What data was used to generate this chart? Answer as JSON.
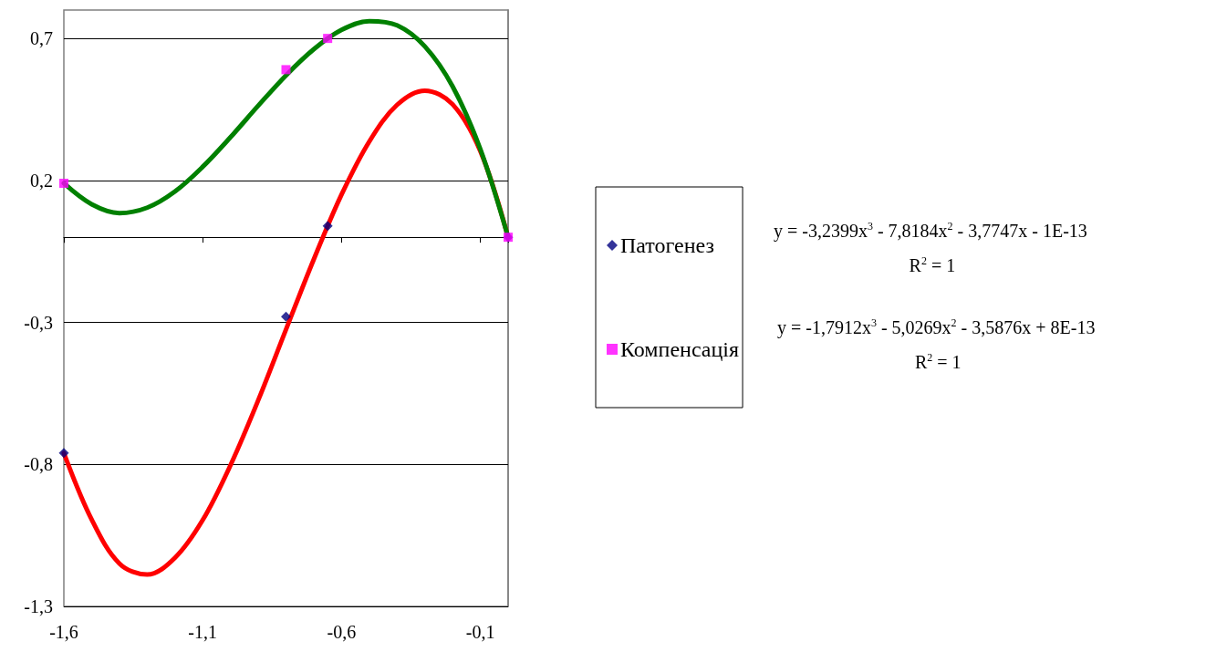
{
  "chart_data": {
    "type": "scatter",
    "xlim": [
      -1.6,
      0
    ],
    "xticks": [
      {
        "value": -1.6,
        "label": "-1,6"
      },
      {
        "value": -1.1,
        "label": "-1,1"
      },
      {
        "value": -0.6,
        "label": "-0,6"
      },
      {
        "value": -0.1,
        "label": "-0,1"
      }
    ],
    "ylim": [
      -1.3,
      0.8
    ],
    "yticks": [
      {
        "value": -1.3,
        "label": "-1,3"
      },
      {
        "value": -0.8,
        "label": "-0,8"
      },
      {
        "value": -0.3,
        "label": "-0,3"
      },
      {
        "value": 0.2,
        "label": "0,2"
      },
      {
        "value": 0.7,
        "label": "0,7"
      }
    ],
    "grid": "y",
    "legend": "right",
    "series": [
      {
        "type": "line",
        "color": "#ff0000",
        "marker": "none",
        "x": [
          -1.6,
          -1.5,
          -1.4,
          -1.3,
          -1.2,
          -1.1,
          -1.0,
          -0.9,
          -0.8,
          -0.7,
          -0.6,
          -0.5,
          -0.4,
          -0.3,
          -0.2,
          -0.1,
          0
        ],
        "values": [
          -0.76,
          -0.994,
          -1.149,
          -1.188,
          -1.129,
          -0.996,
          -0.803,
          -0.574,
          -0.325,
          -0.078,
          0.15,
          0.337,
          0.466,
          0.516,
          0.468,
          0.303,
          0
        ]
      },
      {
        "type": "line",
        "color": "#008000",
        "marker": "none",
        "x": [
          -1.6,
          -1.5,
          -1.4,
          -1.3,
          -1.2,
          -1.1,
          -1.0,
          -0.9,
          -0.8,
          -0.7,
          -0.6,
          -0.5,
          -0.4,
          -0.3,
          -0.2,
          -0.1,
          0
        ],
        "values": [
          0.19,
          0.116,
          0.085,
          0.104,
          0.161,
          0.248,
          0.352,
          0.463,
          0.57,
          0.662,
          0.73,
          0.761,
          0.746,
          0.672,
          0.531,
          0.31,
          0
        ]
      },
      {
        "name": "Патогенез",
        "color": "#000080",
        "marker": "diamond",
        "x": [
          -1.6,
          -0.8,
          -0.65,
          0
        ],
        "values": [
          -0.76,
          -0.28,
          0.04,
          0
        ]
      },
      {
        "name": "Компенсація",
        "color": "#ff00ff",
        "marker": "square",
        "x": [
          -1.6,
          -0.8,
          -0.65,
          0
        ],
        "values": [
          0.19,
          0.59,
          0.7,
          0
        ]
      }
    ],
    "annotations": [
      "y = -3,2399x$^{3}$ - 7,8184x$^{2}$ - 3,7747x - 1E-13",
      "R$^{2}$ = 1",
      "y = -1,7912x$^{3}$ - 5,0269x$^{2}$ - 3,5876x + 8E-13",
      "R$^{2}$ = 1"
    ]
  }
}
